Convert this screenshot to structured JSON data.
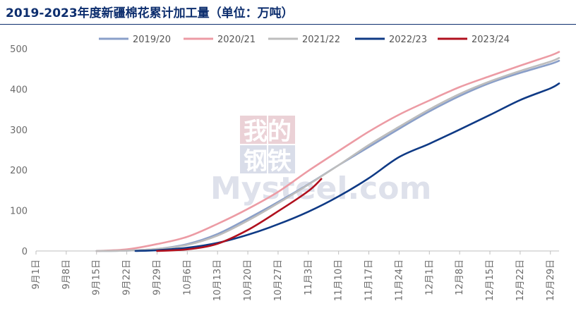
{
  "title": "2019-2023年度新疆棉花累计加工量（单位：万吨）",
  "watermark": {
    "line1": "我的",
    "line2": "钢铁",
    "brand": "Mysteel.com"
  },
  "colors": {
    "2019/20": "#8a9fc9",
    "2020/21": "#ec9ba4",
    "2021/22": "#bdbdbd",
    "2022/23": "#0f3a85",
    "2023/24": "#b0101e",
    "title": "#0d2e6e",
    "axis": "#bfbfbf"
  },
  "chart_data": {
    "type": "line",
    "title": "2019-2023年度新疆棉花累计加工量（单位：万吨）",
    "unit": "万吨",
    "ylim": [
      0,
      500
    ],
    "yticks": [
      0,
      100,
      200,
      300,
      400,
      500
    ],
    "x_start": "9月1日",
    "x_end": "12月31日",
    "xticks": [
      "9月1日",
      "9月8日",
      "9月15日",
      "9月22日",
      "9月29日",
      "10月6日",
      "10月13日",
      "10月20日",
      "10月27日",
      "11月3日",
      "11月10日",
      "11月17日",
      "11月24日",
      "12月1日",
      "12月8日",
      "12月15日",
      "12月22日",
      "12月29日"
    ],
    "legend_position": "top-right",
    "series": [
      {
        "name": "2019/20",
        "x": [
          "9月15日",
          "9月22日",
          "9月29日",
          "10月6日",
          "10月13日",
          "10月20日",
          "10月27日",
          "11月3日",
          "11月10日",
          "11月17日",
          "11月24日",
          "12月1日",
          "12月8日",
          "12月15日",
          "12月22日",
          "12月29日",
          "12月31日"
        ],
        "y": [
          0,
          1,
          5,
          17,
          42,
          80,
          121,
          165,
          212,
          257,
          302,
          345,
          383,
          415,
          440,
          462,
          470
        ]
      },
      {
        "name": "2020/21",
        "x": [
          "9月15日",
          "9月22日",
          "9月29日",
          "10月6日",
          "10月13日",
          "10月20日",
          "10月27日",
          "11月3日",
          "11月10日",
          "11月17日",
          "11月24日",
          "12月1日",
          "12月8日",
          "12月15日",
          "12月22日",
          "12月29日",
          "12月31日"
        ],
        "y": [
          0,
          4,
          17,
          35,
          67,
          104,
          146,
          198,
          247,
          295,
          337,
          372,
          405,
          432,
          458,
          483,
          492
        ]
      },
      {
        "name": "2021/22",
        "x": [
          "9月15日",
          "9月22日",
          "9月29日",
          "10月6日",
          "10月13日",
          "10月20日",
          "10月27日",
          "11月3日",
          "11月10日",
          "11月17日",
          "11月24日",
          "12月1日",
          "12月8日",
          "12月15日",
          "12月22日",
          "12月29日",
          "12月31日"
        ],
        "y": [
          0,
          1,
          5,
          15,
          38,
          75,
          118,
          164,
          212,
          262,
          307,
          350,
          388,
          419,
          445,
          468,
          477
        ]
      },
      {
        "name": "2022/23",
        "x": [
          "9月24日",
          "9月29日",
          "10月6日",
          "10月13日",
          "10月20日",
          "10月27日",
          "11月3日",
          "11月10日",
          "11月17日",
          "11月24日",
          "12月1日",
          "12月8日",
          "12月15日",
          "12月22日",
          "12月29日",
          "12月31日"
        ],
        "y": [
          0,
          2,
          8,
          20,
          40,
          66,
          97,
          135,
          180,
          232,
          265,
          300,
          336,
          373,
          402,
          414
        ]
      },
      {
        "name": "2023/24",
        "x": [
          "9月29日",
          "10月6日",
          "10月13日",
          "10月20日",
          "10月27日",
          "11月3日",
          "11月6日"
        ],
        "y": [
          0,
          4,
          18,
          52,
          98,
          148,
          178
        ]
      }
    ]
  }
}
